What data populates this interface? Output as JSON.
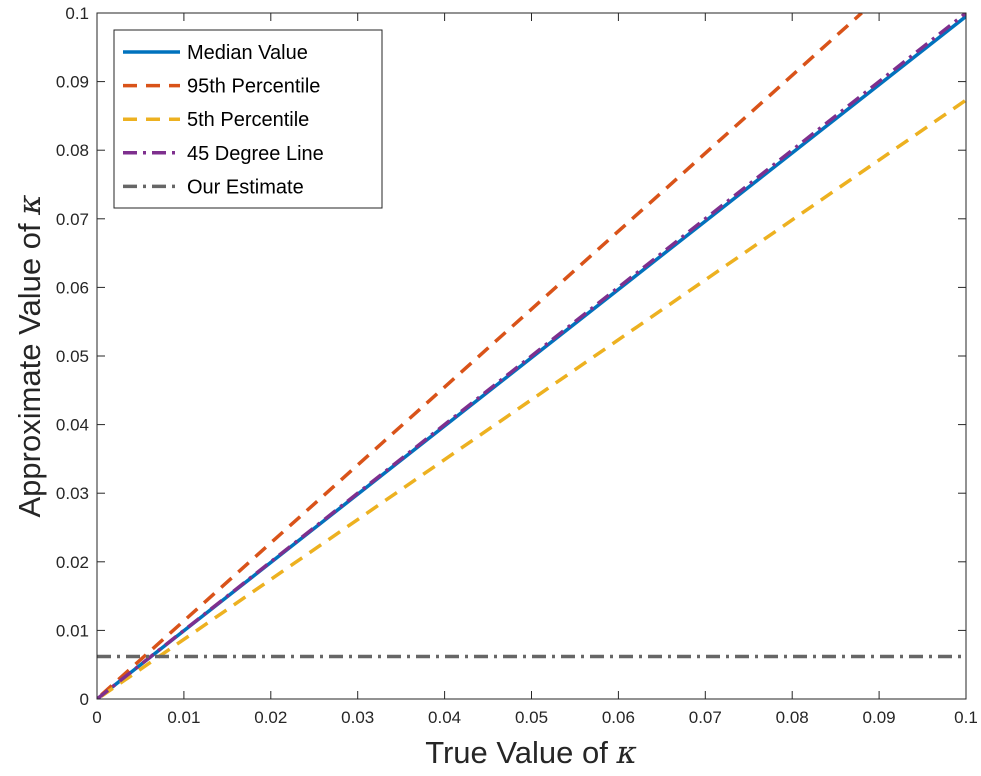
{
  "chart_data": {
    "type": "line",
    "title": "",
    "xlabel": "True Value of",
    "xlabel_symbol": "κ",
    "ylabel": "Approximate Value of",
    "ylabel_symbol": "κ",
    "xlim": [
      0,
      0.1
    ],
    "ylim": [
      0,
      0.1
    ],
    "xticks": [
      0,
      0.01,
      0.02,
      0.03,
      0.04,
      0.05,
      0.06,
      0.07,
      0.08,
      0.09,
      0.1
    ],
    "yticks": [
      0,
      0.01,
      0.02,
      0.03,
      0.04,
      0.05,
      0.06,
      0.07,
      0.08,
      0.09,
      0.1
    ],
    "xtick_labels": [
      "0",
      "0.01",
      "0.02",
      "0.03",
      "0.04",
      "0.05",
      "0.06",
      "0.07",
      "0.08",
      "0.09",
      "0.1"
    ],
    "ytick_labels": [
      "0",
      "0.01",
      "0.02",
      "0.03",
      "0.04",
      "0.05",
      "0.06",
      "0.07",
      "0.08",
      "0.09",
      "0.1"
    ],
    "grid": false,
    "legend_position": "top-left",
    "series": [
      {
        "name": "Median Value",
        "color": "#0072BD",
        "style": "solid",
        "x": [
          0.0005,
          0.1
        ],
        "y": [
          0.0005,
          0.0995
        ]
      },
      {
        "name": "95th Percentile",
        "color": "#D95319",
        "style": "dashed",
        "x": [
          0.0005,
          0.088
        ],
        "y": [
          0.0006,
          0.1
        ]
      },
      {
        "name": "5th Percentile",
        "color": "#EDB120",
        "style": "dashed",
        "x": [
          0.0005,
          0.1
        ],
        "y": [
          0.0004,
          0.0873
        ]
      },
      {
        "name": "45 Degree Line",
        "color": "#7E2F8E",
        "style": "dashdot",
        "x": [
          0,
          0.1
        ],
        "y": [
          0,
          0.1
        ]
      },
      {
        "name": "Our Estimate",
        "color": "#666666",
        "style": "dashdot",
        "x": [
          0,
          0.1
        ],
        "y": [
          0.0062,
          0.0062
        ]
      }
    ]
  }
}
